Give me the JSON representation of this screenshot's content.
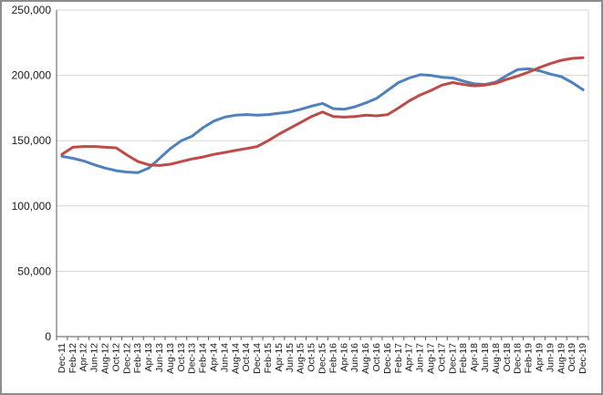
{
  "window": {
    "background": "#ffffff",
    "frame_border_color": "#8d8d8d"
  },
  "chart_data": {
    "type": "line",
    "title": "",
    "xlabel": "",
    "ylabel": "",
    "legend": "none",
    "grid": "horizontal",
    "ylim": [
      0,
      250000
    ],
    "y_tick_step": 50000,
    "y_tick_labels": [
      "0",
      "50,000",
      "100,000",
      "150,000",
      "200,000",
      "250,000"
    ],
    "x_label_rotation": -90,
    "axis_color": "#5a5a5a",
    "gridline_color": "#d6d6d6",
    "label_color": "#1a1a1a",
    "categories": [
      "Dec-11",
      "Feb-12",
      "Apr-12",
      "Jun-12",
      "Aug-12",
      "Oct-12",
      "Dec-12",
      "Feb-13",
      "Apr-13",
      "Jun-13",
      "Aug-13",
      "Oct-13",
      "Dec-13",
      "Feb-14",
      "Apr-14",
      "Jun-14",
      "Aug-14",
      "Oct-14",
      "Dec-14",
      "Feb-15",
      "Apr-15",
      "Jun-15",
      "Aug-15",
      "Oct-15",
      "Dec-15",
      "Feb-16",
      "Apr-16",
      "Jun-16",
      "Aug-16",
      "Oct-16",
      "Dec-16",
      "Feb-17",
      "Apr-17",
      "Jun-17",
      "Aug-17",
      "Oct-17",
      "Dec-17",
      "Feb-18",
      "Apr-18",
      "Jun-18",
      "Aug-18",
      "Oct-18",
      "Dec-18",
      "Feb-19",
      "Apr-19",
      "Jun-19",
      "Aug-19",
      "Oct-19",
      "Dec-19"
    ],
    "series": [
      {
        "name": "series_blue",
        "color": "#4F81BD",
        "values": [
          138000,
          136500,
          134500,
          131500,
          129000,
          127000,
          126000,
          125500,
          129000,
          136500,
          144000,
          150000,
          153500,
          160000,
          165000,
          168000,
          169500,
          170000,
          169500,
          170000,
          171000,
          172000,
          174000,
          176500,
          178500,
          174500,
          174000,
          176000,
          179000,
          182500,
          188500,
          194500,
          198000,
          200500,
          200000,
          198500,
          198000,
          195500,
          193500,
          193000,
          195000,
          200000,
          204500,
          205000,
          203500,
          201000,
          199000,
          194500,
          189000
        ]
      },
      {
        "name": "series_red",
        "color": "#BE4B48",
        "values": [
          139500,
          145000,
          145500,
          145500,
          145000,
          144500,
          139000,
          134000,
          131500,
          131000,
          132000,
          134000,
          136000,
          137500,
          139500,
          141000,
          142500,
          144000,
          145500,
          150000,
          155000,
          159500,
          164000,
          168500,
          172000,
          168500,
          168000,
          168500,
          169500,
          169000,
          170000,
          175000,
          180500,
          185000,
          188500,
          192500,
          194500,
          193000,
          192000,
          192500,
          194000,
          197000,
          199500,
          202500,
          206000,
          209000,
          211500,
          213000,
          213500
        ]
      }
    ]
  }
}
